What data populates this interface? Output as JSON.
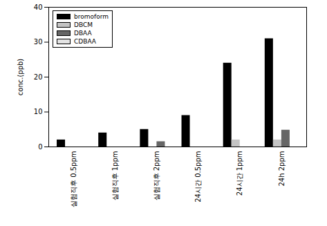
{
  "chart_data": {
    "type": "bar",
    "categories": [
      "실험직후 0.5ppm",
      "실험직후 1ppm",
      "실험직후 2ppm",
      "24시간 0.5ppm",
      "24시간 1ppm",
      "24h 2ppm"
    ],
    "series": [
      {
        "name": "bromoform",
        "color": "#000000",
        "values": [
          2,
          4,
          5,
          9,
          24,
          31
        ]
      },
      {
        "name": "DBCM",
        "color": "#c4c4c4",
        "values": [
          0,
          0,
          0,
          0,
          2,
          2
        ]
      },
      {
        "name": "DBAA",
        "color": "#666666",
        "values": [
          0,
          0,
          1.5,
          0,
          0,
          4.8
        ]
      },
      {
        "name": "CDBAA",
        "color": "#e4e4e4",
        "values": [
          0,
          0,
          0,
          0,
          0,
          0
        ]
      }
    ],
    "y_label": "conc.(ppb)",
    "ylim": [
      0,
      40
    ],
    "yticks": [
      0,
      10,
      20,
      30,
      40
    ],
    "grid": false,
    "legend": "top-left"
  }
}
